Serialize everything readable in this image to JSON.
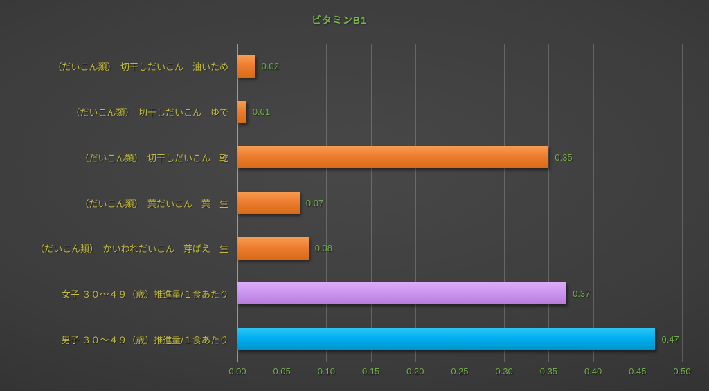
{
  "title": "ビタミンB1",
  "chart_data": {
    "type": "bar",
    "orientation": "horizontal",
    "title": "ビタミンB1",
    "categories": [
      "（だいこん類）　切干しだいこん　油いため",
      "（だいこん類）　切干しだいこん　ゆで",
      "（だいこん類）　切干しだいこん　乾",
      "（だいこん類）　葉だいこん　葉　生",
      "（だいこん類）　かいわれだいこん　芽ばえ　生",
      "女子 ３０～４９（歳）推進量/１食あたり",
      "男子 ３０～４９（歳）推進量/１食あたり"
    ],
    "values": [
      0.02,
      0.01,
      0.35,
      0.07,
      0.08,
      0.37,
      0.47
    ],
    "value_labels": [
      "0.02",
      "0.01",
      "0.35",
      "0.07",
      "0.08",
      "0.37",
      "0.47"
    ],
    "bar_color_keys": [
      "orange",
      "orange",
      "orange",
      "orange",
      "orange",
      "purple",
      "cyan"
    ],
    "x_ticks": [
      "0.00",
      "0.05",
      "0.10",
      "0.15",
      "0.20",
      "0.25",
      "0.30",
      "0.35",
      "0.40",
      "0.45",
      "0.50"
    ],
    "xlim": [
      0,
      0.5
    ],
    "grid": true,
    "legend": false
  },
  "colors": {
    "background_center": "#484848",
    "background_edge": "#252525",
    "title_green": "#77B84C",
    "value_green": "#72AE49",
    "tick_green": "#72AE49",
    "category_yellow": "#C2BB3D",
    "gridline": "rgba(255,255,255,0.20)",
    "axis_line": "rgba(225,225,225,0.55)",
    "bars": {
      "orange": {
        "light": "#F89C4F",
        "base": "#ED7D31",
        "dark": "#D96A15"
      },
      "purple": {
        "light": "#DCACF5",
        "base": "#CB97F0",
        "dark": "#B97BDC"
      },
      "cyan": {
        "light": "#2EC3F7",
        "base": "#00B0F0",
        "dark": "#0092CC"
      }
    }
  }
}
